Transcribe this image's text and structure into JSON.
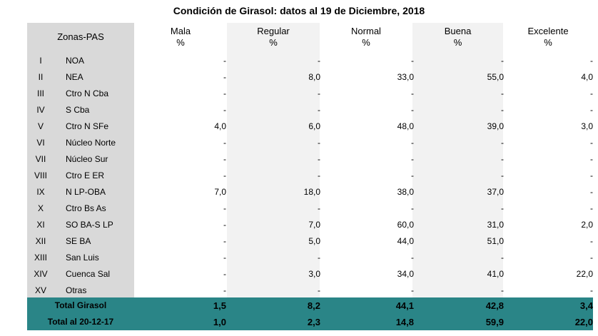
{
  "title": "Condición de Girasol: datos al 19 de Diciembre, 2018",
  "header": {
    "zonas": "Zonas-PAS",
    "cols": [
      {
        "name": "Mala",
        "unit": "%"
      },
      {
        "name": "Regular",
        "unit": "%"
      },
      {
        "name": "Normal",
        "unit": "%"
      },
      {
        "name": "Buena",
        "unit": "%"
      },
      {
        "name": "Excelente",
        "unit": "%"
      }
    ]
  },
  "rows": [
    {
      "rom": "I",
      "zona": "NOA",
      "vals": [
        "-",
        "-",
        "-",
        "-",
        "-"
      ]
    },
    {
      "rom": "II",
      "zona": "NEA",
      "vals": [
        "-",
        "8,0",
        "33,0",
        "55,0",
        "4,0"
      ]
    },
    {
      "rom": "III",
      "zona": "Ctro N Cba",
      "vals": [
        "-",
        "-",
        "-",
        "-",
        "-"
      ]
    },
    {
      "rom": "IV",
      "zona": "S Cba",
      "vals": [
        "-",
        "-",
        "-",
        "-",
        "-"
      ]
    },
    {
      "rom": "V",
      "zona": "Ctro N SFe",
      "vals": [
        "4,0",
        "6,0",
        "48,0",
        "39,0",
        "3,0"
      ]
    },
    {
      "rom": "VI",
      "zona": "Núcleo Norte",
      "vals": [
        "-",
        "-",
        "-",
        "-",
        "-"
      ]
    },
    {
      "rom": "VII",
      "zona": "Núcleo Sur",
      "vals": [
        "-",
        "-",
        "-",
        "-",
        "-"
      ]
    },
    {
      "rom": "VIII",
      "zona": "Ctro E ER",
      "vals": [
        "-",
        "-",
        "-",
        "-",
        "-"
      ]
    },
    {
      "rom": "IX",
      "zona": "N LP-OBA",
      "vals": [
        "7,0",
        "18,0",
        "38,0",
        "37,0",
        "-"
      ]
    },
    {
      "rom": "X",
      "zona": "Ctro Bs As",
      "vals": [
        "-",
        "-",
        "-",
        "-",
        "-"
      ]
    },
    {
      "rom": "XI",
      "zona": "SO BA-S LP",
      "vals": [
        "-",
        "7,0",
        "60,0",
        "31,0",
        "2,0"
      ]
    },
    {
      "rom": "XII",
      "zona": "SE BA",
      "vals": [
        "-",
        "5,0",
        "44,0",
        "51,0",
        "-"
      ]
    },
    {
      "rom": "XIII",
      "zona": "San Luis",
      "vals": [
        "-",
        "-",
        "-",
        "-",
        "-"
      ]
    },
    {
      "rom": "XIV",
      "zona": "Cuenca Sal",
      "vals": [
        "-",
        "3,0",
        "34,0",
        "41,0",
        "22,0"
      ]
    },
    {
      "rom": "XV",
      "zona": "Otras",
      "vals": [
        "-",
        "-",
        "-",
        "-",
        "-"
      ]
    }
  ],
  "totals": [
    {
      "label": "Total Girasol",
      "vals": [
        "1,5",
        "8,2",
        "44,1",
        "42,8",
        "3,4"
      ]
    },
    {
      "label": "Total al 20-12-17",
      "vals": [
        "1,0",
        "2,3",
        "14,8",
        "59,9",
        "22,0"
      ]
    }
  ],
  "colors": {
    "zona_bg": "#d9d9d9",
    "alt_bg": "#f2f2f2",
    "total_bg": "#2a8587"
  }
}
